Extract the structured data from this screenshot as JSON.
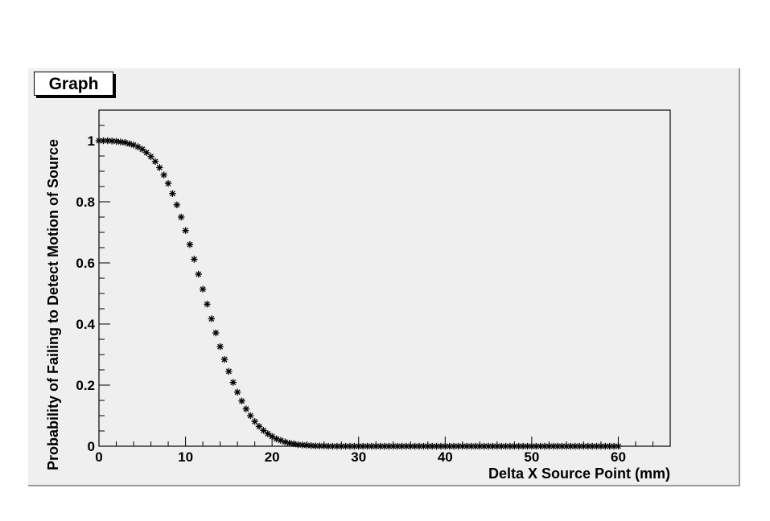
{
  "title": "Graph",
  "chart_data": {
    "type": "scatter",
    "title": "Graph",
    "xlabel": "Delta X Source Point (mm)",
    "ylabel": "Probability of Failing to Detect Motion of Source",
    "xlim": [
      0,
      66
    ],
    "ylim": [
      0,
      1.1
    ],
    "x_ticks": [
      "0",
      "10",
      "20",
      "30",
      "40",
      "50",
      "60"
    ],
    "y_ticks": [
      "0",
      "0.2",
      "0.4",
      "0.6",
      "0.8",
      "1"
    ],
    "marker": "asterisk",
    "grid": false,
    "x": [
      0,
      0.5,
      1,
      1.5,
      2,
      2.5,
      3,
      3.5,
      4,
      4.5,
      5,
      5.5,
      6,
      6.5,
      7,
      7.5,
      8,
      8.5,
      9,
      9.5,
      10,
      10.5,
      11,
      11.5,
      12,
      12.5,
      13,
      13.5,
      14,
      14.5,
      15,
      15.5,
      16,
      16.5,
      17,
      17.5,
      18,
      18.5,
      19,
      19.5,
      20,
      20.5,
      21,
      21.5,
      22,
      22.5,
      23,
      23.5,
      24,
      24.5,
      25,
      25.5,
      26,
      26.5,
      27,
      27.5,
      28,
      28.5,
      29,
      29.5,
      30,
      30.5,
      31,
      31.5,
      32,
      32.5,
      33,
      33.5,
      34,
      34.5,
      35,
      35.5,
      36,
      36.5,
      37,
      37.5,
      38,
      38.5,
      39,
      39.5,
      40,
      40.5,
      41,
      41.5,
      42,
      42.5,
      43,
      43.5,
      44,
      44.5,
      45,
      45.5,
      46,
      46.5,
      47,
      47.5,
      48,
      48.5,
      49,
      49.5,
      50,
      50.5,
      51,
      51.5,
      52,
      52.5,
      53,
      53.5,
      54,
      54.5,
      55,
      55.5,
      56,
      56.5,
      57,
      57.5,
      58,
      58.5,
      59,
      59.5,
      60
    ],
    "y": [
      1.0,
      1.0,
      1.0,
      0.999,
      0.998,
      0.996,
      0.994,
      0.99,
      0.986,
      0.98,
      0.972,
      0.961,
      0.948,
      0.932,
      0.912,
      0.888,
      0.86,
      0.827,
      0.79,
      0.75,
      0.706,
      0.66,
      0.612,
      0.563,
      0.514,
      0.465,
      0.417,
      0.371,
      0.326,
      0.284,
      0.245,
      0.209,
      0.177,
      0.148,
      0.122,
      0.1,
      0.081,
      0.065,
      0.052,
      0.041,
      0.032,
      0.024,
      0.019,
      0.014,
      0.01,
      0.008,
      0.005,
      0.004,
      0.003,
      0.002,
      0.001,
      0.001,
      0.001,
      0,
      0,
      0,
      0,
      0,
      0,
      0,
      0,
      0,
      0,
      0,
      0,
      0,
      0,
      0,
      0,
      0,
      0,
      0,
      0,
      0,
      0,
      0,
      0,
      0,
      0,
      0,
      0,
      0,
      0,
      0,
      0,
      0,
      0,
      0,
      0,
      0,
      0,
      0,
      0,
      0,
      0,
      0,
      0,
      0,
      0,
      0,
      0,
      0,
      0,
      0,
      0,
      0,
      0,
      0,
      0,
      0,
      0,
      0,
      0,
      0,
      0,
      0,
      0,
      0,
      0,
      0,
      0
    ]
  }
}
